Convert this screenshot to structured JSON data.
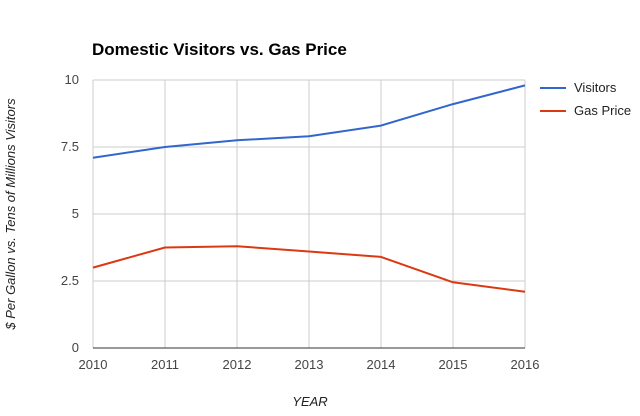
{
  "chart_data": {
    "type": "line",
    "title": "Domestic Visitors vs. Gas Price",
    "xlabel": "YEAR",
    "ylabel": "$ Per Gallon vs. Tens of Millions Visitors",
    "categories": [
      "2010",
      "2011",
      "2012",
      "2013",
      "2014",
      "2015",
      "2016"
    ],
    "ylim": [
      0,
      10
    ],
    "yticks": [
      "0",
      "2.5",
      "5",
      "7.5",
      "10"
    ],
    "grid": true,
    "legend_position": "right",
    "series": [
      {
        "name": "Visitors",
        "color": "#3366cc",
        "values": [
          7.1,
          7.5,
          7.75,
          7.9,
          8.3,
          9.1,
          9.8
        ]
      },
      {
        "name": "Gas Price",
        "color": "#dc3912",
        "values": [
          3.0,
          3.75,
          3.8,
          3.6,
          3.4,
          2.45,
          2.1
        ]
      }
    ]
  }
}
